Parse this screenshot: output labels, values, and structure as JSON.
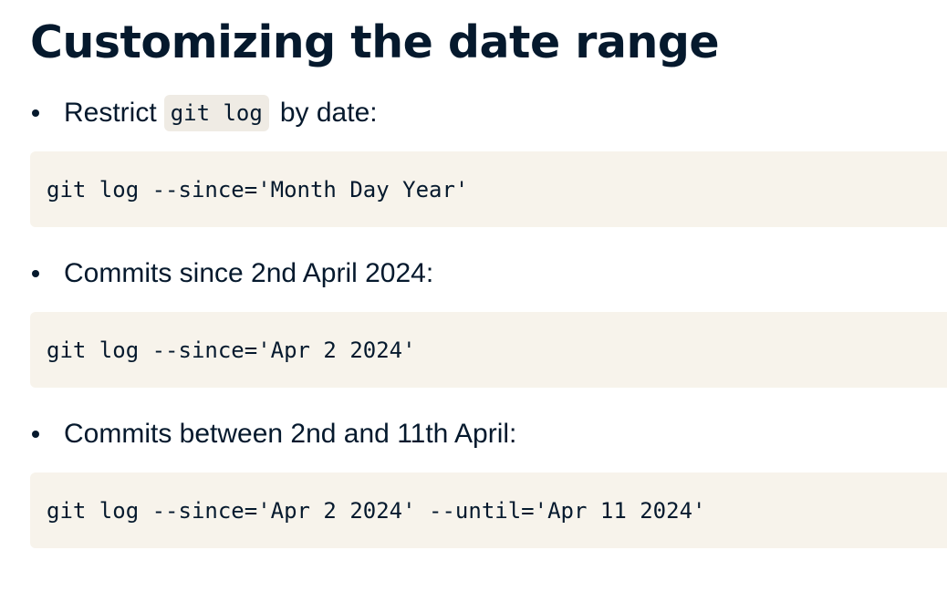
{
  "title": "Customizing the date range",
  "items": [
    {
      "text_before": "Restrict",
      "inline_code": "git log",
      "text_after": "by date:",
      "code": "git log --since='Month Day Year'"
    },
    {
      "text": "Commits since 2nd April 2024:",
      "code": "git log --since='Apr 2 2024'"
    },
    {
      "text": "Commits between 2nd and 11th April:",
      "code": "git log --since='Apr 2 2024' --until='Apr 11 2024'"
    }
  ],
  "colors": {
    "text": "#05192d",
    "code_block_bg": "#f7f3eb",
    "inline_code_bg": "#efebe4",
    "page_bg": "#ffffff"
  }
}
